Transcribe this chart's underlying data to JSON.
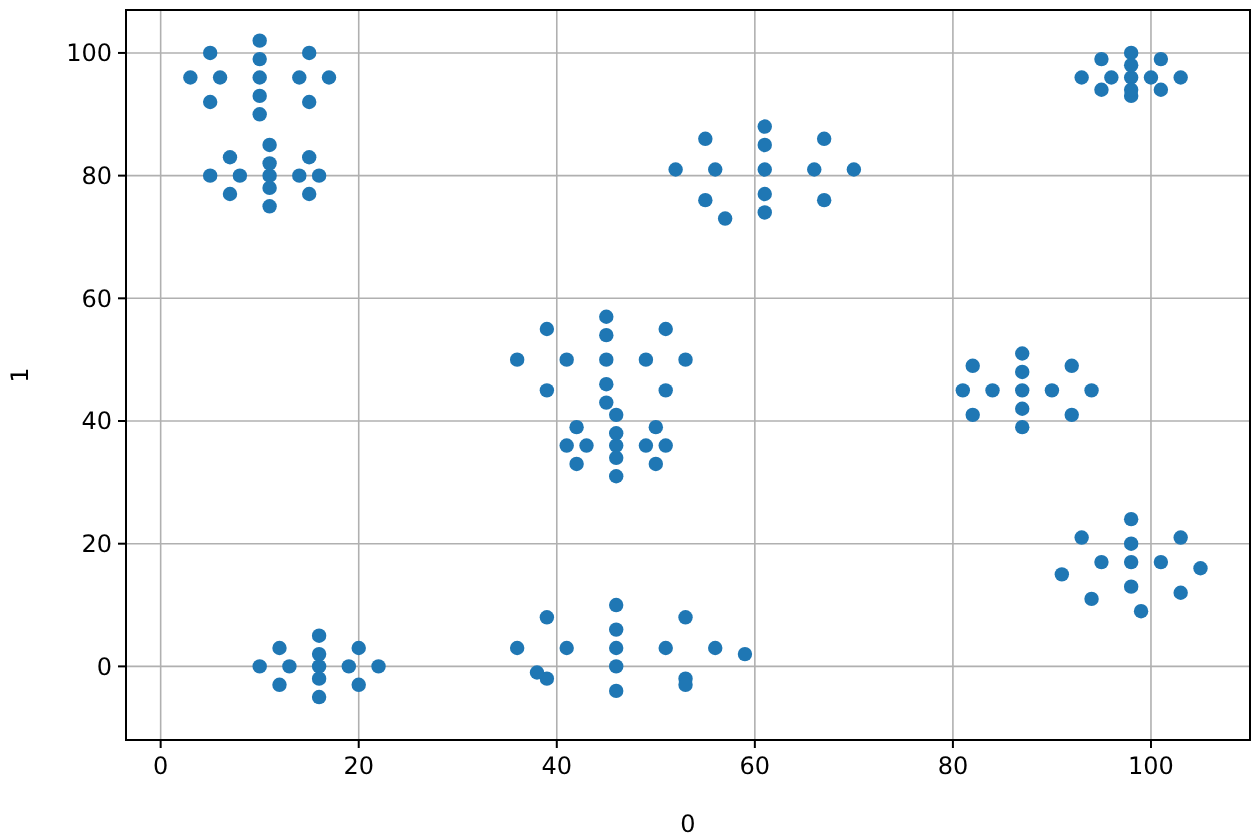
{
  "chart_data": {
    "type": "scatter",
    "xlabel": "0",
    "ylabel": "1",
    "xlim": [
      -3.5,
      110
    ],
    "ylim": [
      -12,
      107
    ],
    "xticks": [
      0,
      20,
      40,
      60,
      80,
      100
    ],
    "yticks": [
      0,
      20,
      40,
      60,
      80,
      100
    ],
    "grid": true,
    "marker": "circle",
    "series": [
      {
        "color": "#1f77b4",
        "x": [
          17,
          15,
          10,
          5,
          3,
          5,
          10,
          15,
          10,
          6,
          14,
          10,
          10,
          16,
          15,
          11,
          7,
          5,
          7,
          11,
          15,
          11,
          8,
          14,
          11,
          11,
          22,
          20,
          16,
          12,
          10,
          12,
          16,
          20,
          16,
          13,
          19,
          16,
          16,
          53,
          51,
          45,
          39,
          36,
          39,
          45,
          51,
          45,
          41,
          49,
          45,
          45,
          51,
          50,
          46,
          42,
          41,
          42,
          46,
          50,
          46,
          43,
          49,
          46,
          46,
          56,
          53,
          46,
          39,
          36,
          39,
          46,
          53,
          46,
          41,
          51,
          46,
          46,
          38,
          53,
          59,
          70,
          67,
          61,
          55,
          52,
          55,
          61,
          67,
          61,
          56,
          66,
          61,
          61,
          57,
          94,
          92,
          87,
          82,
          81,
          82,
          87,
          92,
          87,
          84,
          90,
          87,
          87,
          103,
          101,
          98,
          95,
          93,
          95,
          98,
          101,
          98,
          96,
          100,
          98,
          98,
          105,
          103,
          98,
          93,
          91,
          94,
          99,
          103,
          98,
          95,
          101,
          98,
          98
        ],
        "values": [
          96,
          100,
          102,
          100,
          96,
          92,
          90,
          92,
          96,
          96,
          96,
          99,
          93,
          80,
          83,
          85,
          83,
          80,
          77,
          75,
          77,
          80,
          80,
          80,
          82,
          78,
          0,
          3,
          5,
          3,
          0,
          -3,
          -5,
          -3,
          0,
          0,
          0,
          2,
          -2,
          50,
          55,
          57,
          55,
          50,
          45,
          43,
          45,
          50,
          50,
          50,
          54,
          46,
          36,
          39,
          41,
          39,
          36,
          33,
          31,
          33,
          36,
          36,
          36,
          38,
          34,
          3,
          8,
          10,
          8,
          3,
          -2,
          -4,
          -2,
          3,
          3,
          3,
          6,
          0,
          -1,
          -3,
          2,
          81,
          86,
          88,
          86,
          81,
          76,
          74,
          76,
          81,
          81,
          81,
          85,
          77,
          73,
          45,
          49,
          51,
          49,
          45,
          41,
          39,
          41,
          45,
          45,
          45,
          48,
          42,
          96,
          99,
          100,
          99,
          96,
          94,
          93,
          94,
          96,
          96,
          96,
          98,
          94,
          16,
          21,
          24,
          21,
          15,
          11,
          9,
          12,
          17,
          17,
          17,
          20,
          13
        ]
      }
    ]
  }
}
